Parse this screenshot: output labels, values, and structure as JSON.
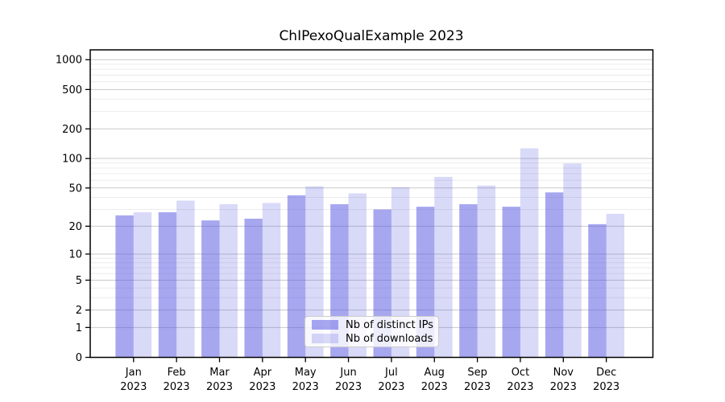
{
  "title": "ChIPexoQualExample 2023",
  "colors": {
    "bar_ips": "rgba(80,80,225,0.50)",
    "bar_downloads": "rgba(80,80,225,0.22)",
    "grid_major": "#c9c9c9",
    "grid_minor": "#ececec",
    "axis": "#000000",
    "text": "#000000"
  },
  "chart_data": {
    "type": "bar",
    "title": "ChIPexoQualExample 2023",
    "categories": [
      "Jan",
      "Feb",
      "Mar",
      "Apr",
      "May",
      "Jun",
      "Jul",
      "Aug",
      "Sep",
      "Oct",
      "Nov",
      "Dec"
    ],
    "category_year": "2023",
    "series": [
      {
        "name": "Nb of distinct IPs",
        "values": [
          26,
          28,
          23,
          24,
          42,
          34,
          30,
          32,
          34,
          32,
          45,
          21
        ]
      },
      {
        "name": "Nb of downloads",
        "values": [
          28,
          37,
          34,
          35,
          52,
          44,
          51,
          65,
          53,
          127,
          89,
          27
        ]
      }
    ],
    "xlabel": "",
    "ylabel": "",
    "yscale": "log1p",
    "yticks": [
      0,
      1,
      2,
      5,
      10,
      20,
      50,
      100,
      200,
      500,
      1000
    ],
    "ylim": [
      0,
      1260
    ],
    "grid": true,
    "legend_position": "lower center"
  }
}
